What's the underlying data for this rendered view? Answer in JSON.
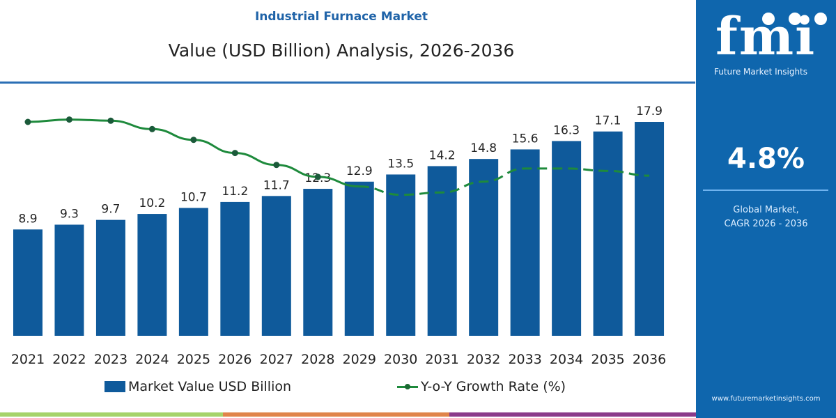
{
  "header": {
    "title": "Industrial Furnace Market",
    "subtitle": "Value (USD Billion) Analysis, 2026-2036"
  },
  "colors": {
    "bar": "#0f5a9b",
    "line": "#1e8a3c",
    "marker": "#1b5a3a",
    "panel": "#0f66ad",
    "title_accent": "#1f63a8",
    "stripes": [
      "#a6d36a",
      "#e0844a",
      "#8b3a8a"
    ]
  },
  "chart_data": {
    "type": "bar",
    "categories": [
      "2021",
      "2022",
      "2023",
      "2024",
      "2025",
      "2026",
      "2027",
      "2028",
      "2029",
      "2030",
      "2031",
      "2032",
      "2033",
      "2034",
      "2035",
      "2036"
    ],
    "series": [
      {
        "name": "Market Value USD Billion",
        "type": "bar",
        "values": [
          8.9,
          9.3,
          9.7,
          10.2,
          10.7,
          11.2,
          11.7,
          12.3,
          12.9,
          13.5,
          14.2,
          14.8,
          15.6,
          16.3,
          17.1,
          17.9
        ]
      },
      {
        "name": "Y-o-Y Growth Rate (%)",
        "type": "line",
        "estimated": true,
        "values": [
          17.9,
          18.1,
          18.0,
          17.3,
          16.4,
          15.3,
          14.3,
          13.3,
          12.5,
          11.8,
          12.0,
          12.9,
          14.0,
          14.0,
          13.8,
          13.4
        ],
        "markers_until": "2028",
        "dashed_from": "2029"
      }
    ],
    "ylim": [
      0,
      17.9
    ],
    "grid": false,
    "legend": "bottom"
  },
  "legend": {
    "bar_label": "Market Value USD Billion",
    "line_label": "Y-o-Y Growth Rate (%)"
  },
  "panel": {
    "logo_text": "fmi",
    "logo_sub": "Future Market Insights",
    "cagr": "4.8%",
    "cagr_label_1": "Global Market,",
    "cagr_label_2": "CAGR 2026 - 2036",
    "url": "www.futuremarketinsights.com"
  }
}
